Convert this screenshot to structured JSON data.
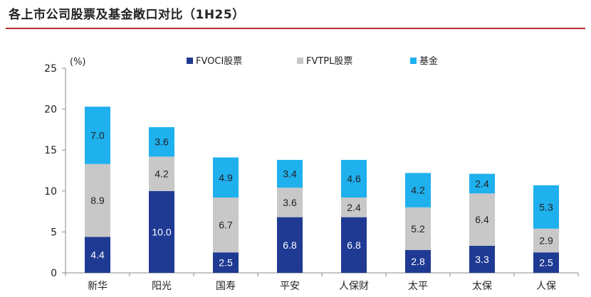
{
  "header": {
    "title": "各上市公司股票及基金敞口对比（1H25）"
  },
  "colors": {
    "fvoci": "#1f3a93",
    "fvtpl": "#c8c8c8",
    "fund": "#1fb0ee",
    "rule": "#c0282e"
  },
  "chart_data": {
    "type": "bar",
    "stacked": true,
    "unit_label": "(%)",
    "ylim": [
      0,
      25
    ],
    "yticks": [
      "0",
      "5",
      "10",
      "15",
      "20",
      "25"
    ],
    "categories": [
      "新华",
      "阳光",
      "国寿",
      "平安",
      "人保财",
      "太平",
      "太保",
      "人保"
    ],
    "series": [
      {
        "name": "FVOCI股票",
        "values": [
          4.4,
          10.0,
          2.5,
          6.8,
          6.8,
          2.8,
          3.3,
          2.5
        ],
        "labels": [
          "4.4",
          "10.0",
          "2.5",
          "6.8",
          "6.8",
          "2.8",
          "3.3",
          "2.5"
        ]
      },
      {
        "name": "FVTPL股票",
        "values": [
          8.9,
          4.2,
          6.7,
          3.6,
          2.4,
          5.2,
          6.4,
          2.9
        ],
        "labels": [
          "8.9",
          "4.2",
          "6.7",
          "3.6",
          "2.4",
          "5.2",
          "6.4",
          "2.9"
        ]
      },
      {
        "name": "基金",
        "values": [
          7.0,
          3.6,
          4.9,
          3.4,
          4.6,
          4.2,
          2.4,
          5.3
        ],
        "labels": [
          "7.0",
          "3.6",
          "4.9",
          "3.4",
          "4.6",
          "4.2",
          "2.4",
          "5.3"
        ]
      }
    ],
    "legend_position": "top",
    "grid": false
  }
}
